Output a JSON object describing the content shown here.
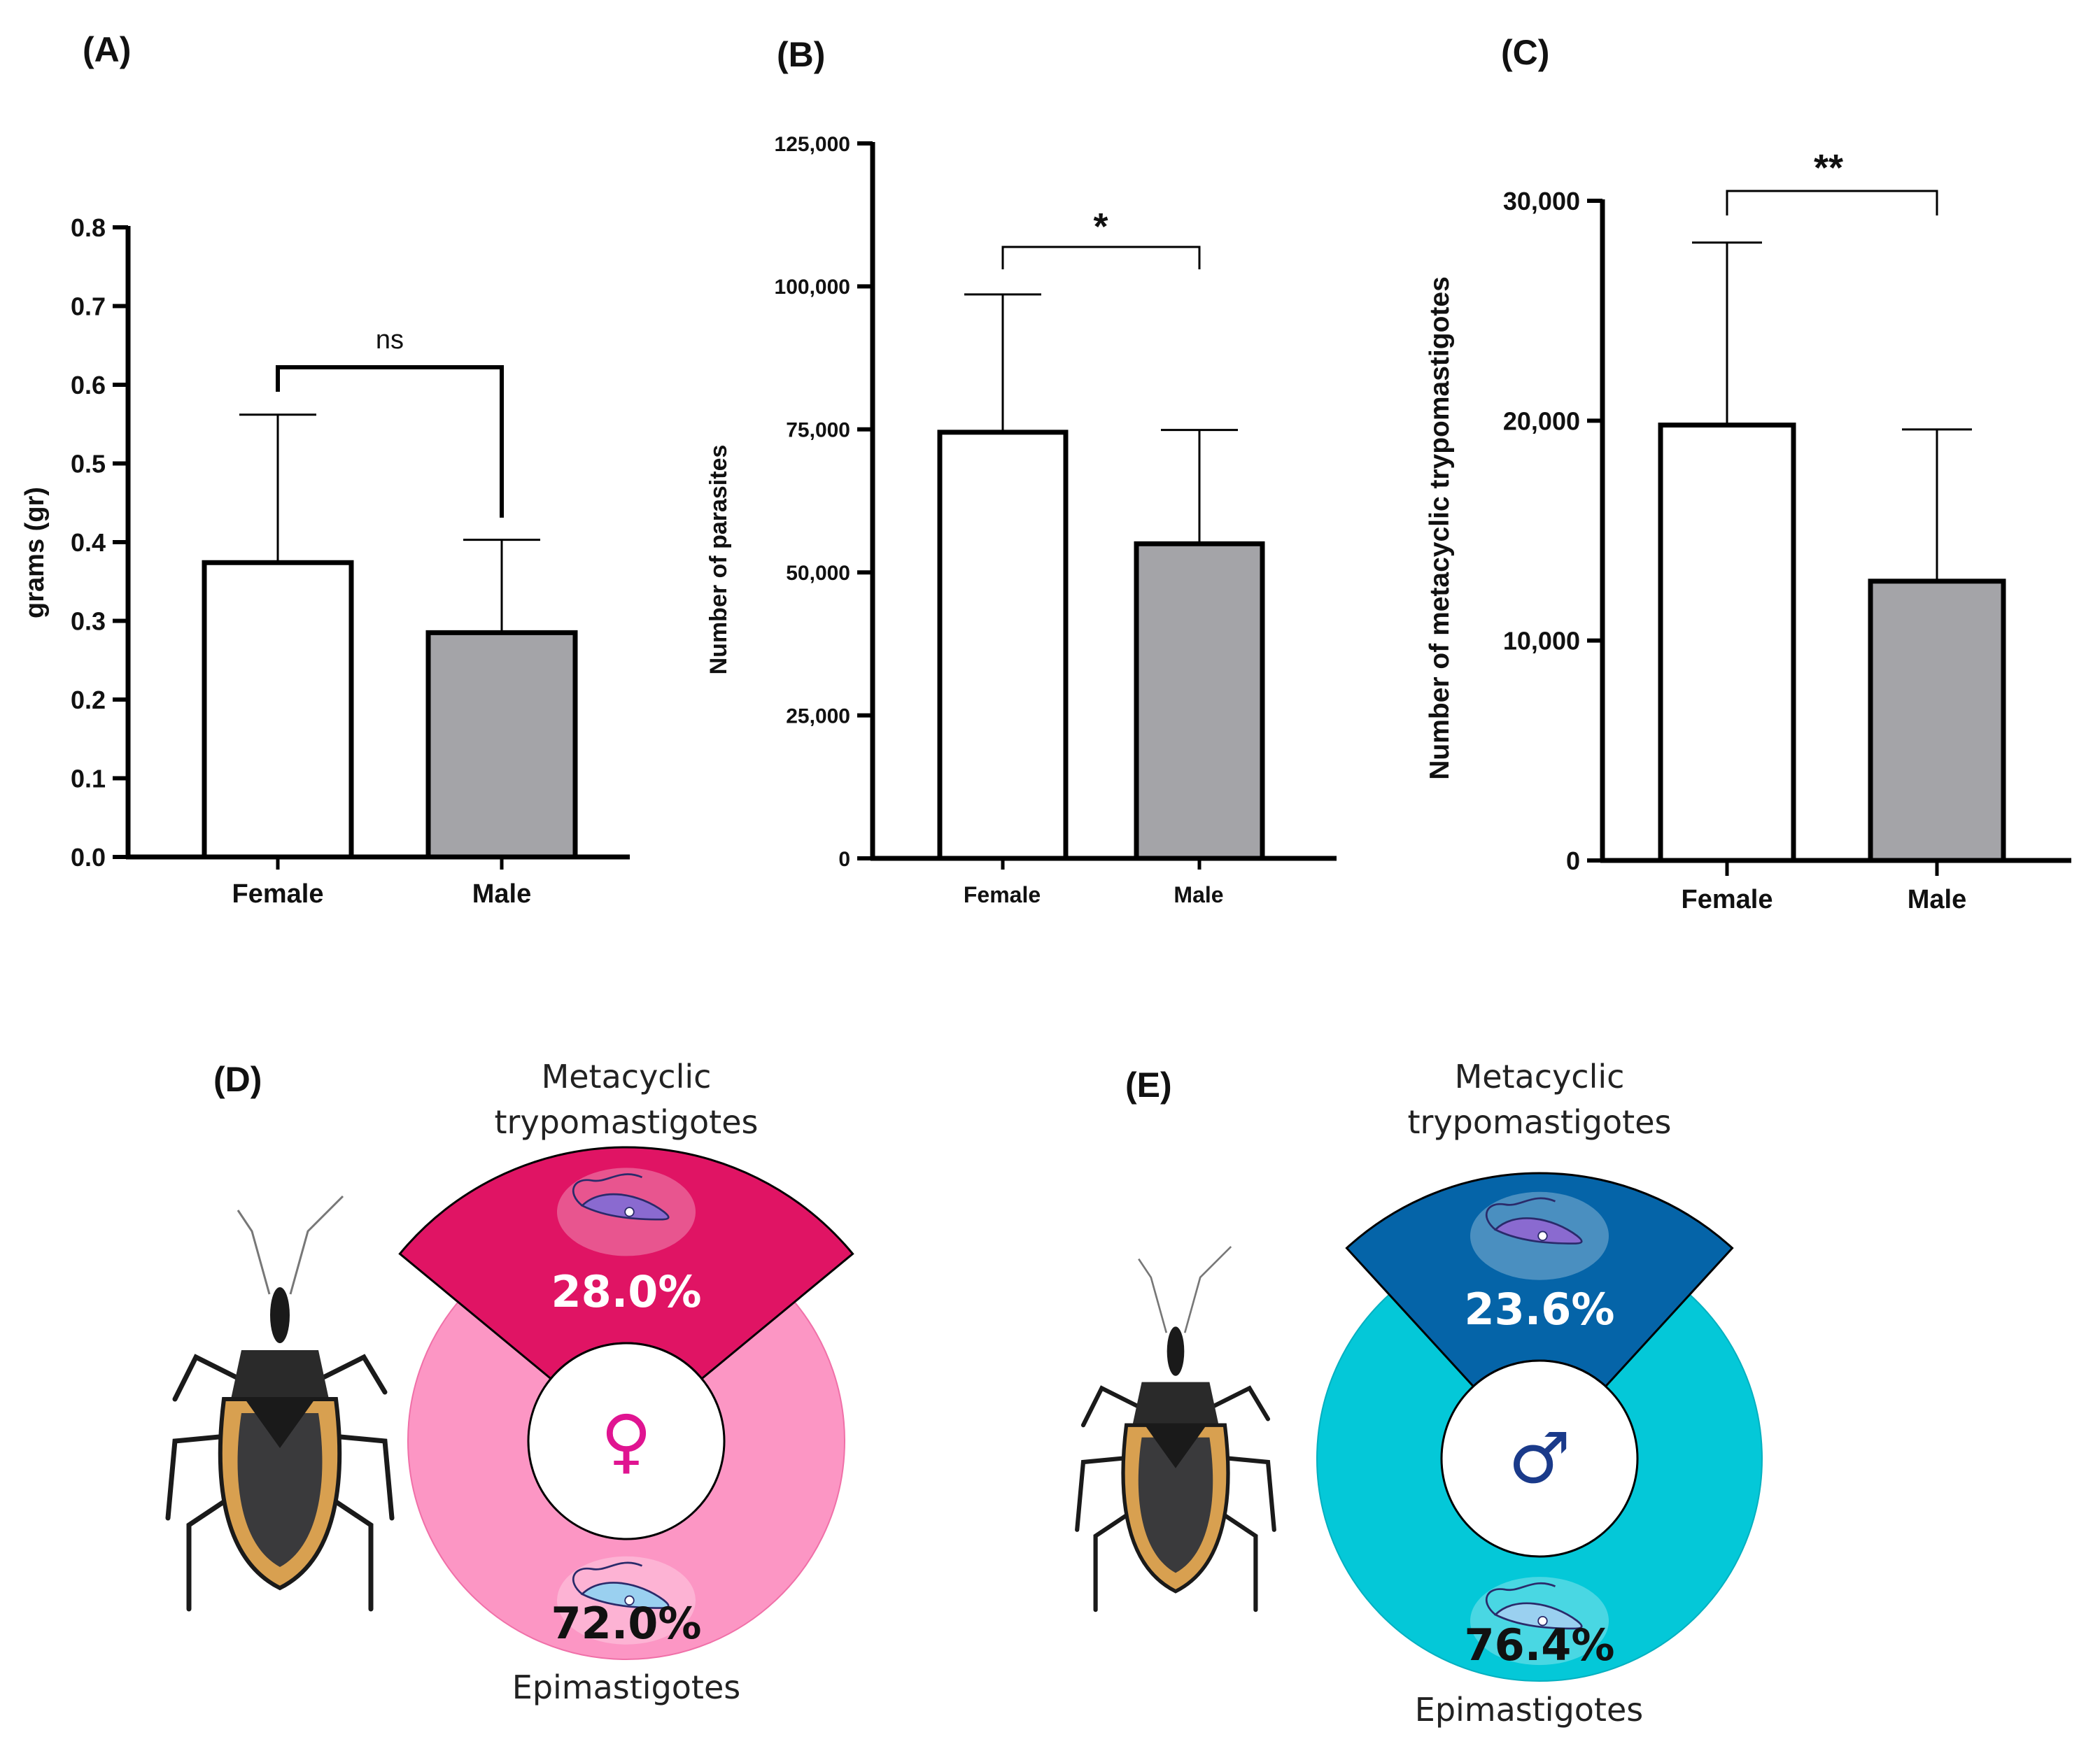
{
  "colors": {
    "female_bar": "#ffffff",
    "male_bar": "#a4a4a8",
    "female_meta": "#e01464",
    "female_epi": "#fc96c4",
    "male_meta": "#0564a8",
    "male_epi": "#04c8d8",
    "female_symbol": "#e01491",
    "male_symbol": "#1a3a8a"
  },
  "chart_data": [
    {
      "panel": "(A)",
      "type": "bar",
      "categories": [
        "Female",
        "Male"
      ],
      "values": [
        0.374,
        0.285
      ],
      "errors_upper": [
        0.562,
        0.403
      ],
      "ylabel": "grams (gr)",
      "ylim": [
        0,
        0.8
      ],
      "yticks": [
        0.0,
        0.1,
        0.2,
        0.3,
        0.4,
        0.5,
        0.6,
        0.7,
        0.8
      ],
      "ytick_labels": [
        "0.0",
        "0.1",
        "0.2",
        "0.3",
        "0.4",
        "0.5",
        "0.6",
        "0.7",
        "0.8"
      ],
      "significance": "ns"
    },
    {
      "panel": "(B)",
      "type": "bar",
      "categories": [
        "Female",
        "Male"
      ],
      "values": [
        74500,
        55000
      ],
      "errors_upper": [
        98600,
        74900
      ],
      "ylabel": "Number of parasites",
      "ylim": [
        0,
        125000
      ],
      "yticks": [
        0,
        25000,
        50000,
        75000,
        100000,
        125000
      ],
      "ytick_labels": [
        "0",
        "25,000",
        "50,000",
        "75,000",
        "100,000",
        "125,000"
      ],
      "significance": "*"
    },
    {
      "panel": "(C)",
      "type": "bar",
      "categories": [
        "Female",
        "Male"
      ],
      "values": [
        19800,
        12700
      ],
      "errors_upper": [
        28100,
        19600
      ],
      "ylabel": "Number of metacyclic trypomastigotes",
      "ylim": [
        0,
        30000
      ],
      "yticks": [
        0,
        10000,
        20000,
        30000
      ],
      "ytick_labels": [
        "0",
        "10,000",
        "20,000",
        "30,000"
      ],
      "significance": "**"
    },
    {
      "panel": "(D)",
      "type": "pie",
      "subtitle": "Female",
      "symbol": "♀",
      "labels": [
        "Metacyclic trypomastigotes",
        "Epimastigotes"
      ],
      "values": [
        28.0,
        72.0
      ],
      "value_labels": [
        "28.0%",
        "72.0%"
      ],
      "title_lines": [
        "Metacyclic",
        "trypomastigotes"
      ],
      "bottom_label": "Epimastigotes"
    },
    {
      "panel": "(E)",
      "type": "pie",
      "subtitle": "Male",
      "symbol": "♂",
      "labels": [
        "Metacyclic trypomastigotes",
        "Epimastigotes"
      ],
      "values": [
        23.6,
        76.4
      ],
      "value_labels": [
        "23.6%",
        "76.4%"
      ],
      "title_lines": [
        "Metacyclic",
        "trypomastigotes"
      ],
      "bottom_label": "Epimastigotes"
    }
  ]
}
